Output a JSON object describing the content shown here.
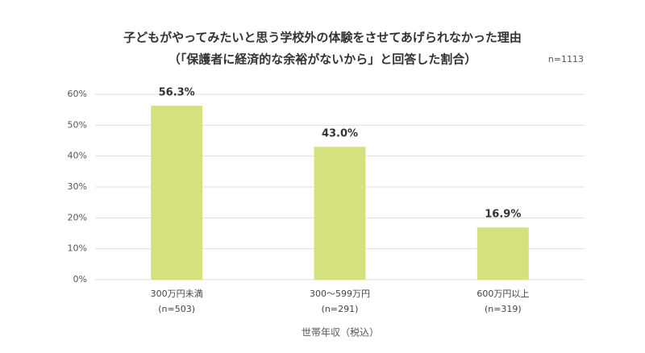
{
  "chart_data": {
    "type": "bar",
    "title": "子どもがやってみたいと思う学校外の体験をさせてあげられなかった理由",
    "subtitle": "（「保護者に経済的な余裕がないから」と回答した割合）",
    "note": "n=1113",
    "x_label": "世帯年収（税込）",
    "categories": [
      "300万円未満",
      "300〜599万円",
      "600万円以上"
    ],
    "category_sublabels": [
      "(n=503)",
      "(n=291)",
      "(n=319)"
    ],
    "values": [
      56.3,
      43.0,
      16.9
    ],
    "value_labels": [
      "56.3%",
      "43.0%",
      "16.9%"
    ],
    "color": "#d5e17f",
    "ylim": [
      0,
      60
    ],
    "yticks": [
      {
        "value": 0,
        "label": "0%"
      },
      {
        "value": 10,
        "label": "10%"
      },
      {
        "value": 20,
        "label": "20%"
      },
      {
        "value": 30,
        "label": "30%"
      },
      {
        "value": 40,
        "label": "40%"
      },
      {
        "value": 50,
        "label": "50%"
      },
      {
        "value": 60,
        "label": "60%"
      }
    ],
    "grid": true
  }
}
